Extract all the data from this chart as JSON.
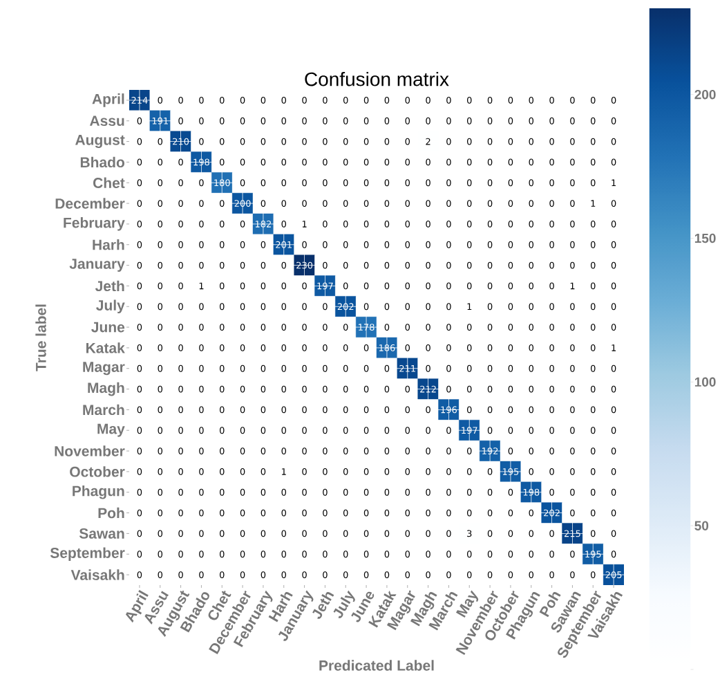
{
  "chart_data": {
    "type": "heatmap",
    "title": "Confusion matrix",
    "xlabel": "Predicated Label",
    "ylabel": "True label",
    "categories": [
      "April",
      "Assu",
      "August",
      "Bhado",
      "Chet",
      "December",
      "February",
      "Harh",
      "January",
      "Jeth",
      "July",
      "June",
      "Katak",
      "Magar",
      "Magh",
      "March",
      "May",
      "November",
      "October",
      "Phagun",
      "Poh",
      "Sawan",
      "September",
      "Vaisakh"
    ],
    "y_categories": [
      "April",
      "Assu",
      "August",
      "Bhado",
      "Chet",
      "December",
      "February",
      "Harh",
      "January",
      "Jeth",
      "July",
      "June",
      "Katak",
      "Magar",
      "Magh",
      "March",
      "May",
      "November",
      "October",
      "Phagun",
      "Poh",
      "Sawan",
      "September",
      "Vaisakh"
    ],
    "cells": [
      [
        214,
        0,
        0,
        0,
        0,
        0,
        0,
        0,
        0,
        0,
        0,
        0,
        0,
        0,
        0,
        0,
        0,
        0,
        0,
        0,
        0,
        0,
        0,
        0
      ],
      [
        0,
        191,
        0,
        0,
        0,
        0,
        0,
        0,
        0,
        0,
        0,
        0,
        0,
        0,
        0,
        0,
        0,
        0,
        0,
        0,
        0,
        0,
        0,
        0
      ],
      [
        0,
        0,
        210,
        0,
        0,
        0,
        0,
        0,
        0,
        0,
        0,
        0,
        0,
        0,
        2,
        0,
        0,
        0,
        0,
        0,
        0,
        0,
        0,
        0
      ],
      [
        0,
        0,
        0,
        198,
        0,
        0,
        0,
        0,
        0,
        0,
        0,
        0,
        0,
        0,
        0,
        0,
        0,
        0,
        0,
        0,
        0,
        0,
        0,
        0
      ],
      [
        0,
        0,
        0,
        0,
        180,
        0,
        0,
        0,
        0,
        0,
        0,
        0,
        0,
        0,
        0,
        0,
        0,
        0,
        0,
        0,
        0,
        0,
        0,
        1
      ],
      [
        0,
        0,
        0,
        0,
        0,
        200,
        0,
        0,
        0,
        0,
        0,
        0,
        0,
        0,
        0,
        0,
        0,
        0,
        0,
        0,
        0,
        0,
        1,
        0
      ],
      [
        0,
        0,
        0,
        0,
        0,
        0,
        182,
        0,
        1,
        0,
        0,
        0,
        0,
        0,
        0,
        0,
        0,
        0,
        0,
        0,
        0,
        0,
        0,
        0
      ],
      [
        0,
        0,
        0,
        0,
        0,
        0,
        0,
        201,
        0,
        0,
        0,
        0,
        0,
        0,
        0,
        0,
        0,
        0,
        0,
        0,
        0,
        0,
        0,
        0
      ],
      [
        0,
        0,
        0,
        0,
        0,
        0,
        0,
        0,
        230,
        0,
        0,
        0,
        0,
        0,
        0,
        0,
        0,
        0,
        0,
        0,
        0,
        0,
        0,
        0
      ],
      [
        0,
        0,
        0,
        1,
        0,
        0,
        0,
        0,
        0,
        197,
        0,
        0,
        0,
        0,
        0,
        0,
        0,
        0,
        0,
        0,
        0,
        1,
        0,
        0
      ],
      [
        0,
        0,
        0,
        0,
        0,
        0,
        0,
        0,
        0,
        0,
        202,
        0,
        0,
        0,
        0,
        0,
        1,
        0,
        0,
        0,
        0,
        0,
        0,
        0
      ],
      [
        0,
        0,
        0,
        0,
        0,
        0,
        0,
        0,
        0,
        0,
        0,
        178,
        0,
        0,
        0,
        0,
        0,
        0,
        0,
        0,
        0,
        0,
        0,
        0
      ],
      [
        0,
        0,
        0,
        0,
        0,
        0,
        0,
        0,
        0,
        0,
        0,
        0,
        186,
        0,
        0,
        0,
        0,
        0,
        0,
        0,
        0,
        0,
        0,
        1
      ],
      [
        0,
        0,
        0,
        0,
        0,
        0,
        0,
        0,
        0,
        0,
        0,
        0,
        0,
        211,
        0,
        0,
        0,
        0,
        0,
        0,
        0,
        0,
        0,
        0
      ],
      [
        0,
        0,
        0,
        0,
        0,
        0,
        0,
        0,
        0,
        0,
        0,
        0,
        0,
        0,
        212,
        0,
        0,
        0,
        0,
        0,
        0,
        0,
        0,
        0
      ],
      [
        0,
        0,
        0,
        0,
        0,
        0,
        0,
        0,
        0,
        0,
        0,
        0,
        0,
        0,
        0,
        196,
        0,
        0,
        0,
        0,
        0,
        0,
        0,
        0
      ],
      [
        0,
        0,
        0,
        0,
        0,
        0,
        0,
        0,
        0,
        0,
        0,
        0,
        0,
        0,
        0,
        0,
        197,
        0,
        0,
        0,
        0,
        0,
        0,
        0
      ],
      [
        0,
        0,
        0,
        0,
        0,
        0,
        0,
        0,
        0,
        0,
        0,
        0,
        0,
        0,
        0,
        0,
        0,
        192,
        0,
        0,
        0,
        0,
        0,
        0
      ],
      [
        0,
        0,
        0,
        0,
        0,
        0,
        0,
        1,
        0,
        0,
        0,
        0,
        0,
        0,
        0,
        0,
        0,
        0,
        195,
        0,
        0,
        0,
        0,
        0
      ],
      [
        0,
        0,
        0,
        0,
        0,
        0,
        0,
        0,
        0,
        0,
        0,
        0,
        0,
        0,
        0,
        0,
        0,
        0,
        0,
        198,
        0,
        0,
        0,
        0
      ],
      [
        0,
        0,
        0,
        0,
        0,
        0,
        0,
        0,
        0,
        0,
        0,
        0,
        0,
        0,
        0,
        0,
        0,
        0,
        0,
        0,
        202,
        0,
        0,
        0
      ],
      [
        0,
        0,
        0,
        0,
        0,
        0,
        0,
        0,
        0,
        0,
        0,
        0,
        0,
        0,
        0,
        0,
        3,
        0,
        0,
        0,
        0,
        215,
        0,
        0
      ],
      [
        0,
        0,
        0,
        0,
        0,
        0,
        0,
        0,
        0,
        0,
        0,
        0,
        0,
        0,
        0,
        0,
        0,
        0,
        0,
        0,
        0,
        0,
        195,
        0
      ],
      [
        0,
        0,
        0,
        0,
        0,
        0,
        0,
        0,
        0,
        0,
        0,
        0,
        0,
        0,
        0,
        0,
        0,
        0,
        0,
        0,
        0,
        0,
        0,
        205
      ]
    ],
    "clim": [
      0,
      230
    ],
    "cticks": [
      {
        "value": 0,
        "label": null
      },
      50,
      100,
      150,
      200
    ],
    "data_labels": true,
    "grid": true
  }
}
